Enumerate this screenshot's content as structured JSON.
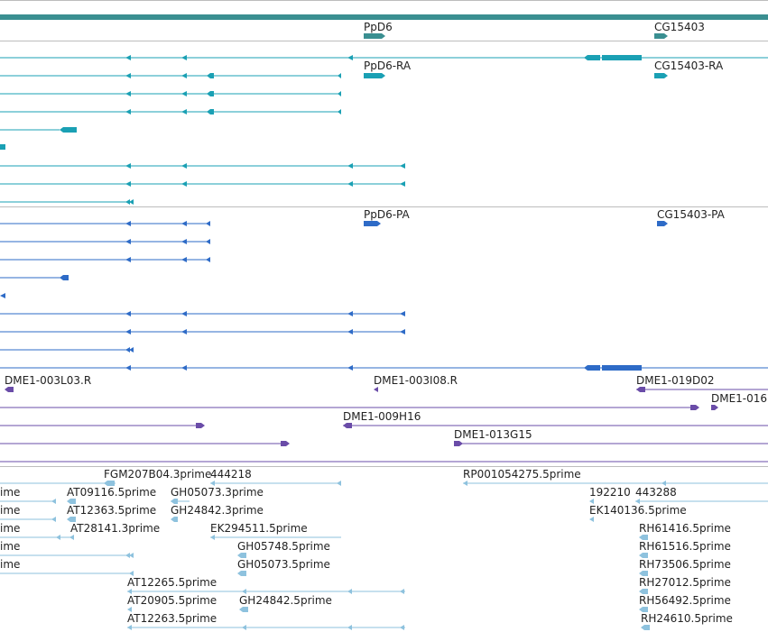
{
  "colors": {
    "gene": "#3a8f91",
    "transcript_teal": "#1aa0b4",
    "transcript_blue": "#2e6bc7",
    "clone_purple": "#6a4ca8",
    "est_lightblue": "#8ec2de",
    "divider": "#bdbdbd"
  },
  "tracks": {
    "genes": {
      "labels": [
        "PpD6",
        "CG15403"
      ]
    },
    "transcripts_teal": {
      "labels": [
        "PpD6-RA",
        "CG15403-RA"
      ]
    },
    "transcripts_blue": {
      "labels": [
        "PpD6-PA",
        "CG15403-PA"
      ]
    },
    "clones": {
      "labels": [
        "DME1-003L03.R",
        "DME1-003I08.R",
        "DME1-019D02",
        "DME1-016",
        "DME1-009H16",
        "DME1-013G15"
      ]
    },
    "ests": {
      "labels": [
        "FGM207B04.3prime",
        "444218",
        "RP001054275.5prime",
        "ime",
        "AT09116.5prime",
        "GH05073.3prime",
        "192210",
        "443288",
        "ime",
        "AT12363.5prime",
        "GH24842.3prime",
        "EK140136.5prime",
        "ime",
        "AT28141.3prime",
        "EK294511.5prime",
        "RH61416.5prime",
        "ime",
        "GH05748.5prime",
        "RH61516.5prime",
        "ime",
        "GH05073.5prime",
        "RH73506.5prime",
        "AT12265.5prime",
        "RH27012.5prime",
        "AT20905.5prime",
        "GH24842.5prime",
        "RH56492.5prime",
        "AT12263.5prime",
        "RH24610.5prime"
      ]
    }
  }
}
